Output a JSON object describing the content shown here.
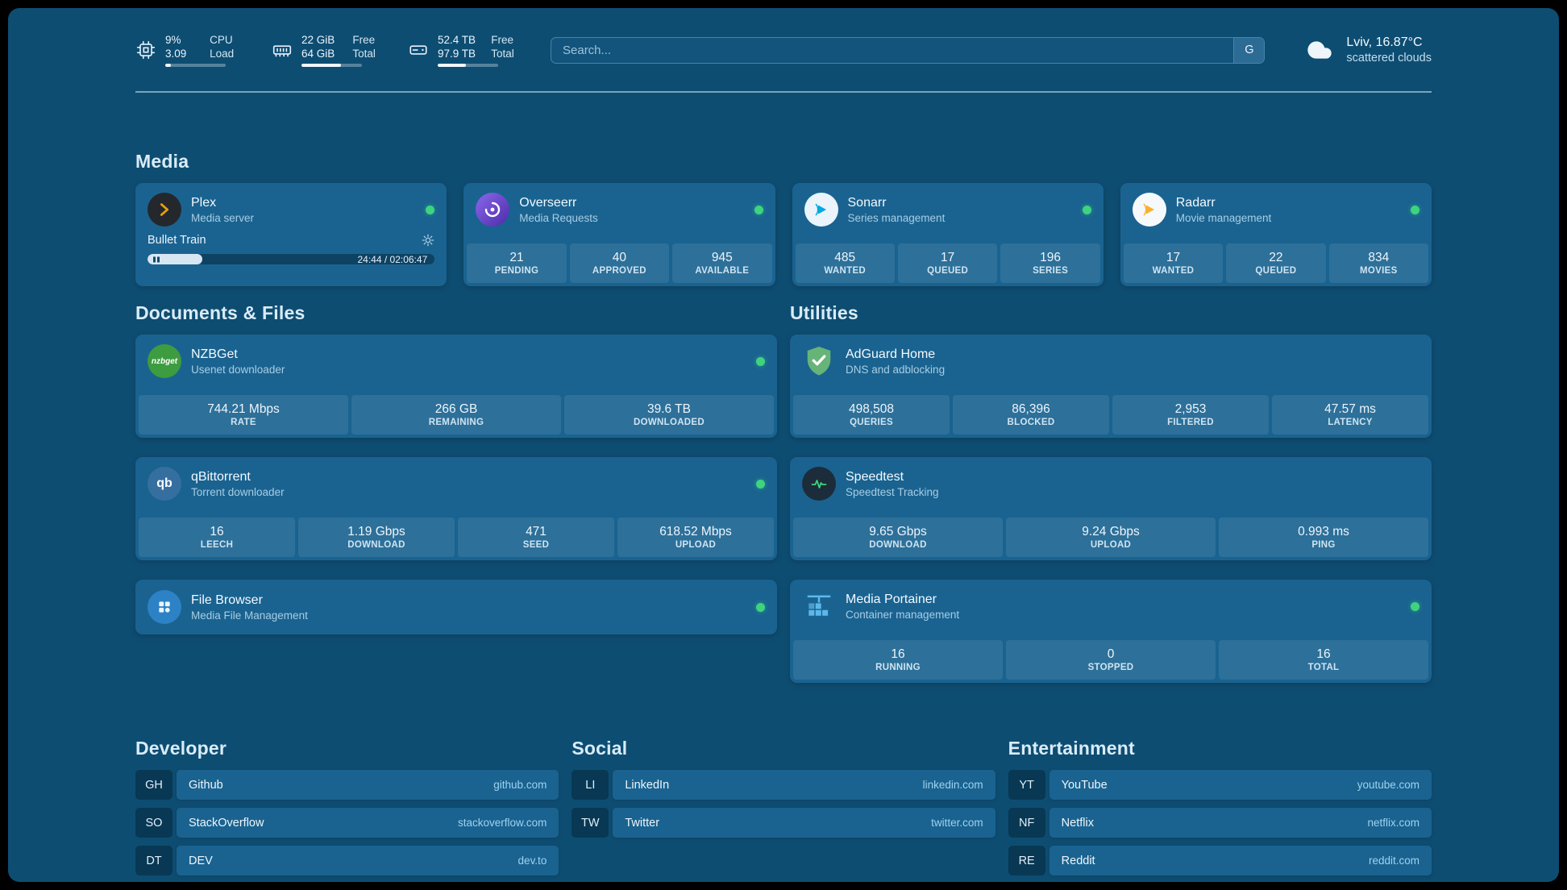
{
  "theme": {
    "page_bg": "#0e4d72",
    "card_bg": "#1a6390",
    "tile_bg": "rgba(255,255,255,0.085)",
    "status_green": "#3ed47e",
    "link_blue": "#9ed2f0",
    "plex_amber": "#e5a00d"
  },
  "topbar": {
    "resources": [
      {
        "icon": "cpu-icon",
        "values": [
          "9%",
          "3.09"
        ],
        "labels": [
          "CPU",
          "Load"
        ],
        "progress_pct": 9
      },
      {
        "icon": "memory-icon",
        "values": [
          "22 GiB",
          "64 GiB"
        ],
        "labels": [
          "Free",
          "Total"
        ],
        "progress_pct": 66
      },
      {
        "icon": "disk-icon",
        "values": [
          "52.4 TB",
          "97.9 TB"
        ],
        "labels": [
          "Free",
          "Total"
        ],
        "progress_pct": 47
      }
    ],
    "search": {
      "placeholder": "Search...",
      "provider_button": "G"
    },
    "weather": {
      "icon": "cloud-icon",
      "location": "Lviv, 16.87°C",
      "condition": "scattered clouds"
    }
  },
  "sections": {
    "media": {
      "title": "Media",
      "plex": {
        "icon": "plex-icon",
        "name": "Plex",
        "subtitle": "Media server",
        "status": "online",
        "now_playing": {
          "title": "Bullet Train",
          "time": "24:44 / 02:06:47",
          "progress_pct": 19
        }
      },
      "overseerr": {
        "icon": "overseerr-icon",
        "name": "Overseerr",
        "subtitle": "Media Requests",
        "status": "online",
        "stats": [
          {
            "value": "21",
            "label": "PENDING"
          },
          {
            "value": "40",
            "label": "APPROVED"
          },
          {
            "value": "945",
            "label": "AVAILABLE"
          }
        ]
      },
      "sonarr": {
        "icon": "sonarr-icon",
        "name": "Sonarr",
        "subtitle": "Series management",
        "status": "online",
        "stats": [
          {
            "value": "485",
            "label": "WANTED"
          },
          {
            "value": "17",
            "label": "QUEUED"
          },
          {
            "value": "196",
            "label": "SERIES"
          }
        ]
      },
      "radarr": {
        "icon": "radarr-icon",
        "name": "Radarr",
        "subtitle": "Movie management",
        "status": "online",
        "stats": [
          {
            "value": "17",
            "label": "WANTED"
          },
          {
            "value": "22",
            "label": "QUEUED"
          },
          {
            "value": "834",
            "label": "MOVIES"
          }
        ]
      }
    },
    "documents": {
      "title": "Documents & Files",
      "nzbget": {
        "icon": "nzbget-icon",
        "name": "NZBGet",
        "subtitle": "Usenet downloader",
        "status": "online",
        "stats": [
          {
            "value": "744.21 Mbps",
            "label": "RATE"
          },
          {
            "value": "266 GB",
            "label": "REMAINING"
          },
          {
            "value": "39.6 TB",
            "label": "DOWNLOADED"
          }
        ]
      },
      "qbittorrent": {
        "icon": "qbittorrent-icon",
        "name": "qBittorrent",
        "subtitle": "Torrent downloader",
        "status": "online",
        "stats": [
          {
            "value": "16",
            "label": "LEECH"
          },
          {
            "value": "1.19 Gbps",
            "label": "DOWNLOAD"
          },
          {
            "value": "471",
            "label": "SEED"
          },
          {
            "value": "618.52 Mbps",
            "label": "UPLOAD"
          }
        ]
      },
      "filebrowser": {
        "icon": "filebrowser-icon",
        "name": "File Browser",
        "subtitle": "Media File Management",
        "status": "online"
      }
    },
    "utilities": {
      "title": "Utilities",
      "adguard": {
        "icon": "adguard-icon",
        "name": "AdGuard Home",
        "subtitle": "DNS and adblocking",
        "stats": [
          {
            "value": "498,508",
            "label": "QUERIES"
          },
          {
            "value": "86,396",
            "label": "BLOCKED"
          },
          {
            "value": "2,953",
            "label": "FILTERED"
          },
          {
            "value": "47.57 ms",
            "label": "LATENCY"
          }
        ]
      },
      "speedtest": {
        "icon": "speedtest-icon",
        "name": "Speedtest",
        "subtitle": "Speedtest Tracking",
        "stats": [
          {
            "value": "9.65 Gbps",
            "label": "DOWNLOAD"
          },
          {
            "value": "9.24 Gbps",
            "label": "UPLOAD"
          },
          {
            "value": "0.993 ms",
            "label": "PING"
          }
        ]
      },
      "portainer": {
        "icon": "portainer-icon",
        "name": "Media Portainer",
        "subtitle": "Container management",
        "status": "online",
        "stats": [
          {
            "value": "16",
            "label": "RUNNING"
          },
          {
            "value": "0",
            "label": "STOPPED"
          },
          {
            "value": "16",
            "label": "TOTAL"
          }
        ]
      }
    },
    "bookmarks": {
      "developer": {
        "title": "Developer",
        "items": [
          {
            "abbr": "GH",
            "name": "Github",
            "domain": "github.com"
          },
          {
            "abbr": "SO",
            "name": "StackOverflow",
            "domain": "stackoverflow.com"
          },
          {
            "abbr": "DT",
            "name": "DEV",
            "domain": "dev.to"
          }
        ]
      },
      "social": {
        "title": "Social",
        "items": [
          {
            "abbr": "LI",
            "name": "LinkedIn",
            "domain": "linkedin.com"
          },
          {
            "abbr": "TW",
            "name": "Twitter",
            "domain": "twitter.com"
          }
        ]
      },
      "entertainment": {
        "title": "Entertainment",
        "items": [
          {
            "abbr": "YT",
            "name": "YouTube",
            "domain": "youtube.com"
          },
          {
            "abbr": "NF",
            "name": "Netflix",
            "domain": "netflix.com"
          },
          {
            "abbr": "RE",
            "name": "Reddit",
            "domain": "reddit.com"
          }
        ]
      }
    }
  }
}
